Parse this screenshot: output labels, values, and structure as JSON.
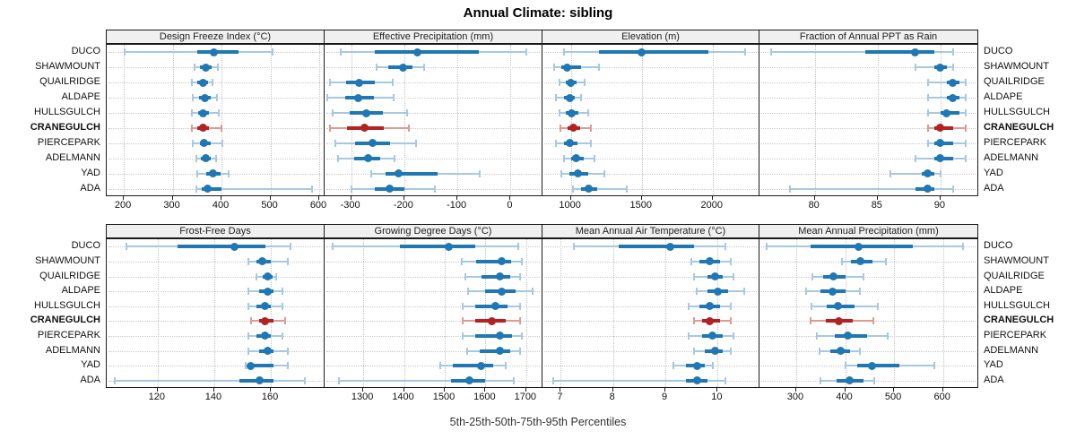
{
  "title": "Annual Climate: sibling",
  "caption": "5th-25th-50th-75th-95th Percentiles",
  "sites": [
    "DUCO",
    "SHAWMOUNT",
    "QUAILRIDGE",
    "ALDAPE",
    "HULLSGULCH",
    "CRANEGULCH",
    "PIERCEPARK",
    "ADELMANN",
    "YAD",
    "ADA"
  ],
  "highlight_site": "CRANEGULCH",
  "colors": {
    "series_main": "#1f78b4",
    "series_light": "#a6c9e2",
    "highlight_main": "#b22222",
    "highlight_light": "#dc9c92",
    "header_bg": "#f0f0f0",
    "grid": "#c9c9c9",
    "frame": "#1a1a1a"
  },
  "chart_data": {
    "type": "interval-dotplot",
    "layout": "2 rows x 4 columns",
    "percentiles": [
      5,
      25,
      50,
      75,
      95
    ],
    "note": "values per site are [p5,p25,p50,p75,p95]; site order matches sites[]",
    "panels": [
      {
        "id": "design-freeze-index",
        "title": "Design Freeze Index (°C)",
        "xlim": [
          165,
          611
        ],
        "ticks": [
          200,
          300,
          400,
          500,
          600
        ],
        "values": [
          [
            202,
            350,
            385,
            435,
            505
          ],
          [
            345,
            356,
            368,
            380,
            393
          ],
          [
            340,
            351,
            362,
            372,
            381
          ],
          [
            341,
            354,
            366,
            377,
            390
          ],
          [
            339,
            352,
            363,
            375,
            395
          ],
          [
            340,
            351,
            362,
            374,
            400
          ],
          [
            342,
            355,
            365,
            378,
            401
          ],
          [
            348,
            358,
            368,
            378,
            388
          ],
          [
            351,
            368,
            383,
            398,
            414
          ],
          [
            348,
            360,
            372,
            400,
            585
          ]
        ]
      },
      {
        "id": "effective-precipitation",
        "title": "Effective Precipitation (mm)",
        "xlim": [
          -350,
          60
        ],
        "ticks": [
          -300,
          -200,
          -100,
          0
        ],
        "values": [
          [
            -320,
            -255,
            -175,
            -60,
            30
          ],
          [
            -252,
            -230,
            -203,
            -185,
            -162
          ],
          [
            -340,
            -310,
            -285,
            -255,
            -222
          ],
          [
            -345,
            -312,
            -287,
            -258,
            -220
          ],
          [
            -335,
            -302,
            -272,
            -240,
            -195
          ],
          [
            -340,
            -308,
            -275,
            -238,
            -192
          ],
          [
            -330,
            -292,
            -260,
            -226,
            -178
          ],
          [
            -325,
            -295,
            -268,
            -246,
            -218
          ],
          [
            -262,
            -235,
            -210,
            -138,
            -58
          ],
          [
            -300,
            -255,
            -228,
            -200,
            -143
          ]
        ]
      },
      {
        "id": "elevation",
        "title": "Elevation (m)",
        "xlim": [
          800,
          2330
        ],
        "ticks": [
          1000,
          1500,
          2000
        ],
        "values": [
          [
            950,
            1200,
            1500,
            1970,
            2230
          ],
          [
            880,
            930,
            975,
            1070,
            1200
          ],
          [
            920,
            965,
            1000,
            1040,
            1100
          ],
          [
            895,
            950,
            995,
            1030,
            1075
          ],
          [
            920,
            965,
            1005,
            1050,
            1125
          ],
          [
            925,
            975,
            1015,
            1065,
            1140
          ],
          [
            895,
            950,
            990,
            1045,
            1140
          ],
          [
            950,
            1000,
            1035,
            1090,
            1165
          ],
          [
            935,
            990,
            1050,
            1120,
            1235
          ],
          [
            1015,
            1075,
            1125,
            1185,
            1395
          ]
        ]
      },
      {
        "id": "fraction-annual-ppt-as-rain",
        "title": "Fraction of Annual PPT as Rain",
        "xlim": [
          75.6,
          93
        ],
        "ticks": [
          80,
          85,
          90
        ],
        "values": [
          [
            76.5,
            84,
            88,
            89.5,
            91
          ],
          [
            88,
            89.5,
            90,
            90.5,
            91
          ],
          [
            89,
            90.5,
            91,
            91.5,
            92
          ],
          [
            89,
            90.5,
            91,
            91.5,
            92
          ],
          [
            89,
            90,
            90.5,
            91.5,
            92
          ],
          [
            89,
            89.5,
            90,
            91,
            92
          ],
          [
            89,
            89.5,
            90,
            91,
            92
          ],
          [
            88,
            89.5,
            90,
            91,
            92
          ],
          [
            86,
            88.5,
            89,
            89.5,
            90
          ],
          [
            78,
            88,
            89,
            89.5,
            91
          ]
        ]
      },
      {
        "id": "frost-free-days",
        "title": "Frost-Free Days",
        "xlim": [
          102,
          179
        ],
        "ticks": [
          120,
          140,
          160
        ],
        "values": [
          [
            109,
            127,
            147,
            158,
            167
          ],
          [
            152,
            155,
            157,
            160,
            166
          ],
          [
            155,
            157,
            159,
            160.5,
            162
          ],
          [
            152,
            156,
            159,
            161,
            164
          ],
          [
            152,
            155,
            158,
            160,
            164
          ],
          [
            153,
            156,
            158,
            161,
            165
          ],
          [
            152,
            155,
            158,
            160,
            164
          ],
          [
            152,
            156,
            159,
            161,
            166
          ],
          [
            151,
            152.5,
            153,
            161,
            166
          ],
          [
            105,
            149,
            156,
            161,
            172
          ]
        ]
      },
      {
        "id": "growing-degree-days",
        "title": "Growing Degree Days (°C)",
        "xlim": [
          1205,
          1740
        ],
        "ticks": [
          1300,
          1400,
          1500,
          1600,
          1700
        ],
        "values": [
          [
            1225,
            1390,
            1510,
            1575,
            1680
          ],
          [
            1542,
            1578,
            1640,
            1663,
            1690
          ],
          [
            1550,
            1590,
            1635,
            1660,
            1685
          ],
          [
            1558,
            1600,
            1640,
            1675,
            1715
          ],
          [
            1545,
            1575,
            1625,
            1655,
            1685
          ],
          [
            1545,
            1575,
            1615,
            1650,
            1685
          ],
          [
            1545,
            1575,
            1635,
            1665,
            1690
          ],
          [
            1555,
            1585,
            1635,
            1660,
            1685
          ],
          [
            1490,
            1520,
            1590,
            1620,
            1650
          ],
          [
            1240,
            1515,
            1560,
            1600,
            1670
          ]
        ]
      },
      {
        "id": "mean-annual-air-temperature",
        "title": "Mean Annual Air Temperature (°C)",
        "xlim": [
          6.65,
          10.8
        ],
        "ticks": [
          7,
          8,
          9,
          10
        ],
        "values": [
          [
            7.25,
            8.1,
            9.1,
            9.55,
            10.15
          ],
          [
            9.5,
            9.65,
            9.85,
            10.05,
            10.25
          ],
          [
            9.55,
            9.8,
            9.95,
            10.1,
            10.3
          ],
          [
            9.6,
            9.8,
            10.0,
            10.2,
            10.5
          ],
          [
            9.45,
            9.65,
            9.85,
            10.05,
            10.25
          ],
          [
            9.55,
            9.7,
            9.85,
            10.05,
            10.25
          ],
          [
            9.45,
            9.7,
            9.9,
            10.1,
            10.3
          ],
          [
            9.55,
            9.75,
            9.95,
            10.1,
            10.25
          ],
          [
            9.15,
            9.4,
            9.6,
            9.75,
            9.9
          ],
          [
            6.85,
            9.4,
            9.6,
            9.8,
            10.15
          ]
        ]
      },
      {
        "id": "mean-annual-precipitation",
        "title": "Mean Annual Precipitation (mm)",
        "xlim": [
          225,
          672
        ],
        "ticks": [
          300,
          400,
          500,
          600
        ],
        "values": [
          [
            240,
            330,
            428,
            538,
            640
          ],
          [
            393,
            412,
            432,
            455,
            483
          ],
          [
            333,
            355,
            376,
            400,
            437
          ],
          [
            320,
            350,
            374,
            400,
            430
          ],
          [
            332,
            362,
            386,
            420,
            467
          ],
          [
            330,
            360,
            388,
            415,
            457
          ],
          [
            343,
            378,
            406,
            445,
            487
          ],
          [
            348,
            370,
            391,
            410,
            430
          ],
          [
            400,
            425,
            455,
            510,
            583
          ],
          [
            350,
            382,
            409,
            437,
            460
          ]
        ]
      }
    ]
  }
}
